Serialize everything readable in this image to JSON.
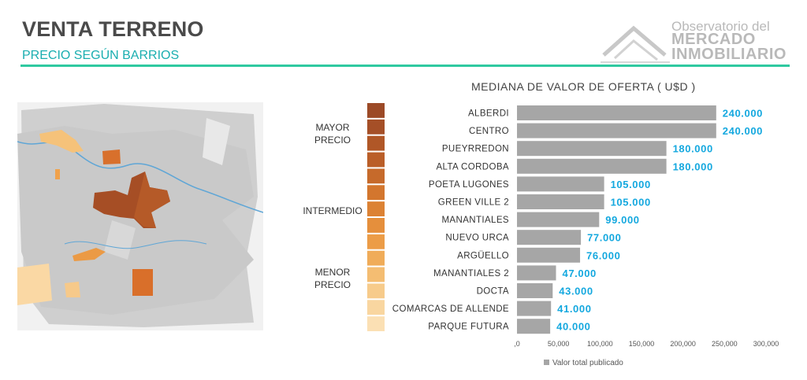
{
  "header": {
    "title": "VENTA TERRENO",
    "subtitle": "PRECIO SEGÚN BARRIOS"
  },
  "logo": {
    "line1": "Observatorio del",
    "line2": "MERCADO",
    "line3": "INMOBILIARIO"
  },
  "legend_scale": {
    "top_label_1": "MAYOR",
    "top_label_2": "PRECIO",
    "mid_label": "INTERMEDIO",
    "bottom_label_1": "MENOR",
    "bottom_label_2": "PRECIO",
    "colors": [
      "#9c4a27",
      "#a54f27",
      "#b05727",
      "#ba5e28",
      "#c66a2b",
      "#d3762e",
      "#dc8234",
      "#e58f3c",
      "#ec9c47",
      "#f0ac59",
      "#f4bd72",
      "#f7cb8b",
      "#f9d6a0",
      "#fbe0b4"
    ]
  },
  "chart_data": {
    "type": "bar",
    "orientation": "horizontal",
    "title": "MEDIANA DE VALOR DE OFERTA ( U$D )",
    "categories": [
      "ALBERDI",
      "CENTRO",
      "PUEYRREDON",
      "ALTA CORDOBA",
      "POETA LUGONES",
      "GREEN VILLE 2",
      "MANANTIALES",
      "NUEVO URCA",
      "ARGÜELLO",
      "MANANTIALES 2",
      "DOCTA",
      "COMARCAS DE ALLENDE",
      "PARQUE FUTURA"
    ],
    "values": [
      240000,
      240000,
      180000,
      180000,
      105000,
      105000,
      99000,
      77000,
      76000,
      47000,
      43000,
      41000,
      40000
    ],
    "value_labels": [
      "240.000",
      "240.000",
      "180.000",
      "180.000",
      "105.000",
      "105.000",
      "99.000",
      "77.000",
      "76.000",
      "47.000",
      "43.000",
      "41.000",
      "40.000"
    ],
    "xlim": [
      0,
      300000
    ],
    "x_ticks": [
      0,
      50000,
      100000,
      150000,
      200000,
      250000,
      300000
    ],
    "x_tick_labels": [
      ",0",
      "50,000",
      "100,000",
      "150,000",
      "200,000",
      "250,000",
      "300,000"
    ],
    "series": [
      {
        "name": "Valor total publicado"
      }
    ],
    "legend_position": "bottom",
    "bar_color": "#a6a6a6",
    "label_color": "#14a8df",
    "grid": false
  }
}
